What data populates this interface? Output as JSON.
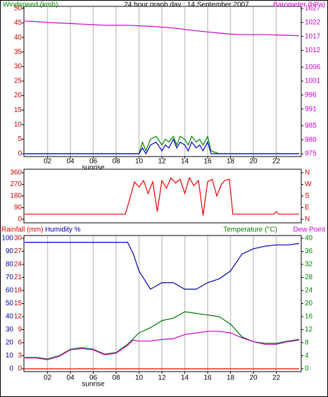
{
  "title": "24 hour graph day : 14 September 2007",
  "chart_data": [
    {
      "type": "line",
      "xlim": [
        0,
        24
      ],
      "xticks": [
        {
          "value": 2,
          "label": "02"
        },
        {
          "value": 4,
          "label": "04"
        },
        {
          "value": 6,
          "label": "06"
        },
        {
          "value": 8,
          "label": "08"
        },
        {
          "value": 10,
          "label": "10"
        },
        {
          "value": 12,
          "label": "12"
        },
        {
          "value": 14,
          "label": "14"
        },
        {
          "value": 16,
          "label": "16"
        },
        {
          "value": 18,
          "label": "18"
        },
        {
          "value": 20,
          "label": "20"
        },
        {
          "value": 22,
          "label": "22"
        }
      ],
      "annotation": {
        "text": "sunrise",
        "x": 6
      },
      "ylim": [
        0,
        50
      ],
      "yticks": [
        0,
        5,
        10,
        15,
        20,
        25,
        30,
        35,
        40,
        45,
        50
      ],
      "ytick_color": "#cc0000",
      "y2lim": [
        975,
        1027
      ],
      "y2ticks": [
        975,
        980,
        985,
        991,
        996,
        1001,
        1006,
        1012,
        1017,
        1022,
        1027
      ],
      "y2tick_color": "#cc00cc",
      "grid": true,
      "series": [
        {
          "name": "Windspeed (kmh)",
          "color": "#008800",
          "axis": "y",
          "x": [
            0,
            10,
            10.3,
            10.6,
            11,
            11.5,
            12,
            12.3,
            12.6,
            13,
            13.3,
            13.6,
            14,
            14.3,
            14.6,
            15,
            15.3,
            15.6,
            16,
            16.3,
            17,
            24
          ],
          "values": [
            0,
            0,
            4,
            1,
            5,
            6,
            3,
            5,
            4,
            6,
            3,
            6,
            5,
            3,
            6,
            4,
            5,
            3,
            6,
            1,
            0,
            0
          ]
        },
        {
          "color": "#0000cc",
          "axis": "y",
          "x": [
            0,
            10,
            10.3,
            10.6,
            11,
            11.5,
            12,
            12.3,
            12.6,
            13,
            13.3,
            13.6,
            14,
            14.3,
            14.6,
            15,
            15.3,
            15.6,
            16,
            16.3,
            17,
            24
          ],
          "values": [
            0,
            0,
            2,
            0,
            3,
            4,
            1,
            3,
            2,
            5,
            2,
            4,
            3,
            1,
            4,
            2,
            3,
            1,
            4,
            0,
            0,
            0
          ]
        },
        {
          "name": "Barometer (hPa)",
          "color": "#cc00cc",
          "axis": "y2",
          "x": [
            0,
            1,
            2,
            3,
            4,
            5,
            6,
            7,
            8,
            9,
            10,
            11,
            12,
            13,
            14,
            15,
            16,
            17,
            18,
            19,
            20,
            21,
            22,
            23,
            24
          ],
          "values": [
            1022.5,
            1022.3,
            1022,
            1021.8,
            1021.6,
            1021.4,
            1021.2,
            1021,
            1021,
            1021,
            1020.8,
            1020.6,
            1020.3,
            1020,
            1019.5,
            1019,
            1018.6,
            1018.2,
            1017.8,
            1017.6,
            1017.6,
            1017.6,
            1017.5,
            1017.4,
            1017.2
          ]
        }
      ]
    },
    {
      "type": "line",
      "xlim": [
        0,
        24
      ],
      "ylim": [
        0,
        360
      ],
      "yticks": [
        0,
        90,
        180,
        270,
        360
      ],
      "ytick_color": "#cc0000",
      "y2lim": [
        0,
        360
      ],
      "y2ticks": [
        {
          "value": 0,
          "label": "N"
        },
        {
          "value": 90,
          "label": "E"
        },
        {
          "value": 180,
          "label": "S"
        },
        {
          "value": 270,
          "label": "W"
        },
        {
          "value": 360,
          "label": "N"
        }
      ],
      "y2tick_color": "#cc0000",
      "grid": true,
      "series": [
        {
          "color": "#ee0000",
          "axis": "y",
          "x": [
            0,
            8,
            8.8,
            9.2,
            9.6,
            10,
            10.4,
            10.8,
            11.2,
            11.6,
            12,
            12.4,
            12.8,
            13.2,
            13.6,
            14,
            14.4,
            14.8,
            15.2,
            15.6,
            16,
            16.4,
            16.8,
            17.2,
            17.5,
            17.9,
            18.2,
            20,
            21.8,
            22,
            22.2,
            24
          ],
          "values": [
            40,
            40,
            40,
            160,
            290,
            250,
            300,
            200,
            290,
            60,
            300,
            240,
            320,
            280,
            310,
            200,
            320,
            260,
            300,
            30,
            290,
            310,
            180,
            270,
            300,
            310,
            40,
            40,
            40,
            60,
            40,
            40
          ]
        }
      ]
    },
    {
      "type": "line",
      "xlim": [
        0,
        24
      ],
      "xticks": [
        {
          "value": 2,
          "label": "02"
        },
        {
          "value": 4,
          "label": "04"
        },
        {
          "value": 6,
          "label": "06"
        },
        {
          "value": 8,
          "label": "08"
        },
        {
          "value": 10,
          "label": "10"
        },
        {
          "value": 12,
          "label": "12"
        },
        {
          "value": 14,
          "label": "14"
        },
        {
          "value": 16,
          "label": "16"
        },
        {
          "value": 18,
          "label": "18"
        },
        {
          "value": 20,
          "label": "20"
        },
        {
          "value": 22,
          "label": "22"
        }
      ],
      "annotation": {
        "text": "sunrise",
        "x": 6
      },
      "ylim": [
        0,
        100
      ],
      "yticks": [
        0,
        10,
        20,
        30,
        40,
        50,
        60,
        70,
        80,
        90,
        100
      ],
      "ytick_color": "#0000aa",
      "y3lim": [
        0,
        30
      ],
      "y3ticks": [
        0,
        3,
        6,
        9,
        12,
        15,
        18,
        21,
        24,
        27,
        30
      ],
      "y3tick_color": "#cc0000",
      "y2lim": [
        0,
        40
      ],
      "y2ticks": [
        0,
        4,
        8,
        12,
        16,
        20,
        24,
        28,
        32,
        36,
        40
      ],
      "y2tick_color": "#008800",
      "grid": true,
      "series": [
        {
          "name": "Rainfall (mm)",
          "color": "#ee0000",
          "axis": "y3",
          "x": [
            0,
            24
          ],
          "values": [
            0,
            0
          ]
        },
        {
          "name": "Humidity %",
          "color": "#0000aa",
          "axis": "y",
          "x": [
            0,
            1,
            2,
            3,
            4,
            5,
            6,
            7,
            8,
            9,
            9.5,
            10,
            11,
            12,
            13,
            14,
            15,
            16,
            17,
            18,
            19,
            20,
            21,
            22,
            23,
            24
          ],
          "values": [
            97,
            97,
            97,
            97,
            97,
            97,
            97,
            97,
            97,
            97,
            88,
            75,
            61,
            66,
            66,
            61,
            61,
            66,
            69,
            75,
            88,
            92,
            94,
            95,
            95,
            96
          ]
        },
        {
          "name": "Temperature (°C)",
          "color": "#007700",
          "axis": "y2",
          "x": [
            0,
            1,
            2,
            3,
            4,
            5,
            6,
            7,
            8,
            9,
            9.5,
            10,
            11,
            12,
            13,
            14,
            15,
            16,
            17,
            18,
            19,
            20,
            21,
            22,
            23,
            24
          ],
          "values": [
            3.5,
            3.5,
            3,
            4,
            6,
            6.5,
            6,
            4.5,
            5,
            7.5,
            9.3,
            11,
            12.6,
            14.8,
            15.5,
            17.5,
            17,
            16.5,
            16,
            13.7,
            9.8,
            8.3,
            7.8,
            7.8,
            8.5,
            9
          ]
        },
        {
          "name": "Dew Point",
          "color": "#cc00cc",
          "axis": "y2",
          "x": [
            0,
            1,
            2,
            3,
            4,
            5,
            6,
            7,
            8,
            9,
            9.5,
            10,
            11,
            12,
            13,
            14,
            15,
            16,
            17,
            18,
            19,
            20,
            21,
            22,
            23,
            24
          ],
          "values": [
            3.3,
            3.3,
            2.8,
            3.8,
            5.8,
            6.2,
            5.8,
            4.3,
            4.8,
            7.2,
            8.8,
            8.5,
            8.5,
            9,
            9.2,
            10.5,
            11,
            11.5,
            11.5,
            11,
            9.5,
            8.3,
            7.5,
            7.5,
            8.3,
            8.8
          ]
        }
      ]
    }
  ]
}
